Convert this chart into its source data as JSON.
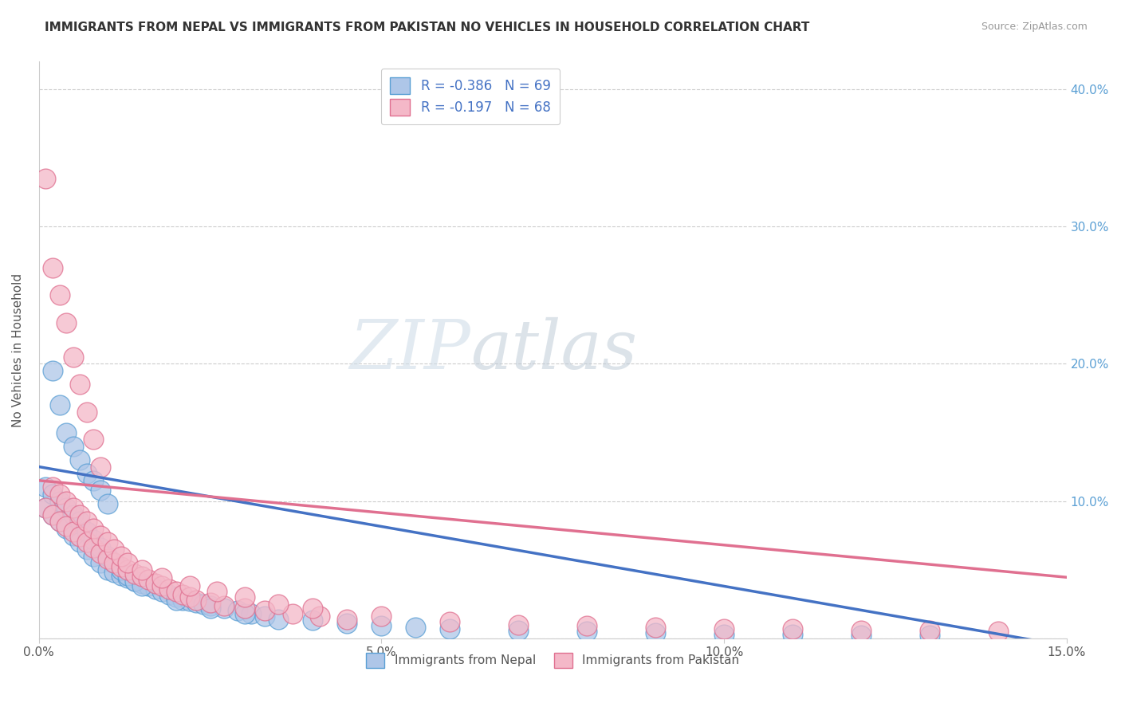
{
  "title": "IMMIGRANTS FROM NEPAL VS IMMIGRANTS FROM PAKISTAN NO VEHICLES IN HOUSEHOLD CORRELATION CHART",
  "source": "Source: ZipAtlas.com",
  "ylabel": "No Vehicles in Household",
  "x_min": 0.0,
  "x_max": 0.15,
  "y_min": 0.0,
  "y_max": 0.42,
  "x_ticks": [
    0.0,
    0.05,
    0.1,
    0.15
  ],
  "x_tick_labels": [
    "0.0%",
    "5.0%",
    "10.0%",
    "15.0%"
  ],
  "y_ticks": [
    0.0,
    0.1,
    0.2,
    0.3,
    0.4
  ],
  "y_tick_labels_right": [
    "",
    "10.0%",
    "20.0%",
    "30.0%",
    "40.0%"
  ],
  "nepal_color": "#aec6e8",
  "nepal_edge_color": "#5a9fd4",
  "pakistan_color": "#f4b8c8",
  "pakistan_edge_color": "#e07090",
  "nepal_line_color": "#4472c4",
  "pakistan_line_color": "#e07090",
  "nepal_R": -0.386,
  "nepal_N": 69,
  "pakistan_R": -0.197,
  "pakistan_N": 68,
  "watermark_zip": "ZIP",
  "watermark_atlas": "atlas",
  "legend_label_nepal": "Immigrants from Nepal",
  "legend_label_pakistan": "Immigrants from Pakistan",
  "background_color": "#ffffff",
  "grid_color": "#cccccc",
  "nepal_line_intercept": 0.125,
  "nepal_line_slope": -0.87,
  "pakistan_line_intercept": 0.115,
  "pakistan_line_slope": -0.47,
  "nepal_x": [
    0.001,
    0.002,
    0.003,
    0.004,
    0.005,
    0.006,
    0.007,
    0.008,
    0.009,
    0.01,
    0.011,
    0.012,
    0.013,
    0.014,
    0.015,
    0.016,
    0.017,
    0.018,
    0.019,
    0.02,
    0.021,
    0.022,
    0.023,
    0.024,
    0.025,
    0.027,
    0.029,
    0.031,
    0.033,
    0.035,
    0.001,
    0.002,
    0.003,
    0.004,
    0.005,
    0.006,
    0.007,
    0.008,
    0.009,
    0.01,
    0.011,
    0.012,
    0.013,
    0.014,
    0.015,
    0.02,
    0.025,
    0.03,
    0.04,
    0.05,
    0.06,
    0.07,
    0.08,
    0.09,
    0.1,
    0.11,
    0.12,
    0.13,
    0.045,
    0.055,
    0.002,
    0.003,
    0.004,
    0.005,
    0.006,
    0.007,
    0.008,
    0.009,
    0.01
  ],
  "nepal_y": [
    0.095,
    0.09,
    0.085,
    0.08,
    0.075,
    0.07,
    0.065,
    0.06,
    0.055,
    0.05,
    0.048,
    0.046,
    0.044,
    0.042,
    0.04,
    0.038,
    0.036,
    0.034,
    0.032,
    0.03,
    0.028,
    0.027,
    0.026,
    0.025,
    0.024,
    0.022,
    0.02,
    0.018,
    0.016,
    0.014,
    0.11,
    0.105,
    0.1,
    0.095,
    0.09,
    0.085,
    0.078,
    0.072,
    0.066,
    0.06,
    0.055,
    0.05,
    0.046,
    0.042,
    0.038,
    0.028,
    0.022,
    0.018,
    0.013,
    0.009,
    0.007,
    0.006,
    0.005,
    0.004,
    0.003,
    0.003,
    0.002,
    0.002,
    0.011,
    0.008,
    0.195,
    0.17,
    0.15,
    0.14,
    0.13,
    0.12,
    0.115,
    0.108,
    0.098
  ],
  "pakistan_x": [
    0.001,
    0.002,
    0.003,
    0.004,
    0.005,
    0.006,
    0.007,
    0.008,
    0.009,
    0.01,
    0.011,
    0.012,
    0.013,
    0.014,
    0.015,
    0.016,
    0.017,
    0.018,
    0.019,
    0.02,
    0.021,
    0.022,
    0.023,
    0.025,
    0.027,
    0.03,
    0.033,
    0.037,
    0.041,
    0.045,
    0.002,
    0.003,
    0.004,
    0.005,
    0.006,
    0.007,
    0.008,
    0.009,
    0.01,
    0.011,
    0.012,
    0.013,
    0.015,
    0.018,
    0.022,
    0.026,
    0.03,
    0.035,
    0.04,
    0.05,
    0.06,
    0.07,
    0.08,
    0.09,
    0.1,
    0.11,
    0.12,
    0.13,
    0.14,
    0.001,
    0.002,
    0.003,
    0.004,
    0.005,
    0.006,
    0.007,
    0.008,
    0.009
  ],
  "pakistan_y": [
    0.095,
    0.09,
    0.085,
    0.082,
    0.078,
    0.074,
    0.07,
    0.066,
    0.062,
    0.058,
    0.055,
    0.052,
    0.05,
    0.047,
    0.045,
    0.043,
    0.04,
    0.038,
    0.036,
    0.034,
    0.032,
    0.03,
    0.028,
    0.026,
    0.024,
    0.022,
    0.02,
    0.018,
    0.016,
    0.014,
    0.11,
    0.105,
    0.1,
    0.095,
    0.09,
    0.085,
    0.08,
    0.075,
    0.07,
    0.065,
    0.06,
    0.055,
    0.05,
    0.044,
    0.038,
    0.034,
    0.03,
    0.025,
    0.022,
    0.016,
    0.012,
    0.01,
    0.009,
    0.008,
    0.007,
    0.007,
    0.006,
    0.006,
    0.005,
    0.335,
    0.27,
    0.25,
    0.23,
    0.205,
    0.185,
    0.165,
    0.145,
    0.125
  ]
}
